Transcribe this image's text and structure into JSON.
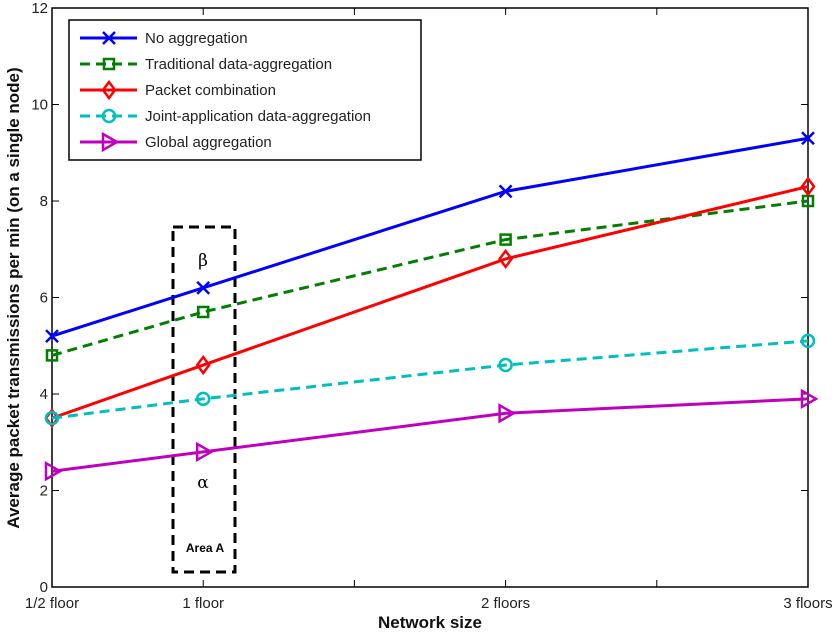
{
  "chart_data": {
    "type": "line",
    "title": "",
    "xlabel": "Network size",
    "ylabel": "Average packet transmissions per min (on a single node)",
    "x": [
      0.5,
      1,
      2,
      3
    ],
    "x_tick_labels": [
      "1/2 floor",
      "1 floor",
      "2 floors",
      "3 floors"
    ],
    "xlim": [
      0.5,
      3
    ],
    "ylim": [
      0,
      12
    ],
    "y_ticks": [
      0,
      2,
      4,
      6,
      8,
      10,
      12
    ],
    "grid": false,
    "legend": "top-left",
    "series": [
      {
        "name": "No aggregation",
        "values": [
          5.2,
          6.2,
          8.2,
          9.3
        ],
        "color": "#0000ff",
        "dash": false,
        "marker": "x"
      },
      {
        "name": "Traditional data-aggregation",
        "values": [
          4.8,
          5.7,
          7.2,
          8.0
        ],
        "color": "#007f00",
        "dash": true,
        "marker": "square"
      },
      {
        "name": "Packet combination",
        "values": [
          3.5,
          4.6,
          6.8,
          8.3
        ],
        "color": "#ff0000",
        "dash": false,
        "marker": "diamond"
      },
      {
        "name": "Joint-application data-aggregation",
        "values": [
          3.5,
          3.9,
          4.6,
          5.1
        ],
        "color": "#00bfbf",
        "dash": true,
        "marker": "circle"
      },
      {
        "name": "Global aggregation",
        "values": [
          2.4,
          2.8,
          3.6,
          3.9
        ],
        "color": "#bf00bf",
        "dash": false,
        "marker": "triangle-right"
      }
    ],
    "annotations": {
      "area_label": "Area A",
      "upper_symbol": "β",
      "lower_symbol": "α"
    }
  }
}
